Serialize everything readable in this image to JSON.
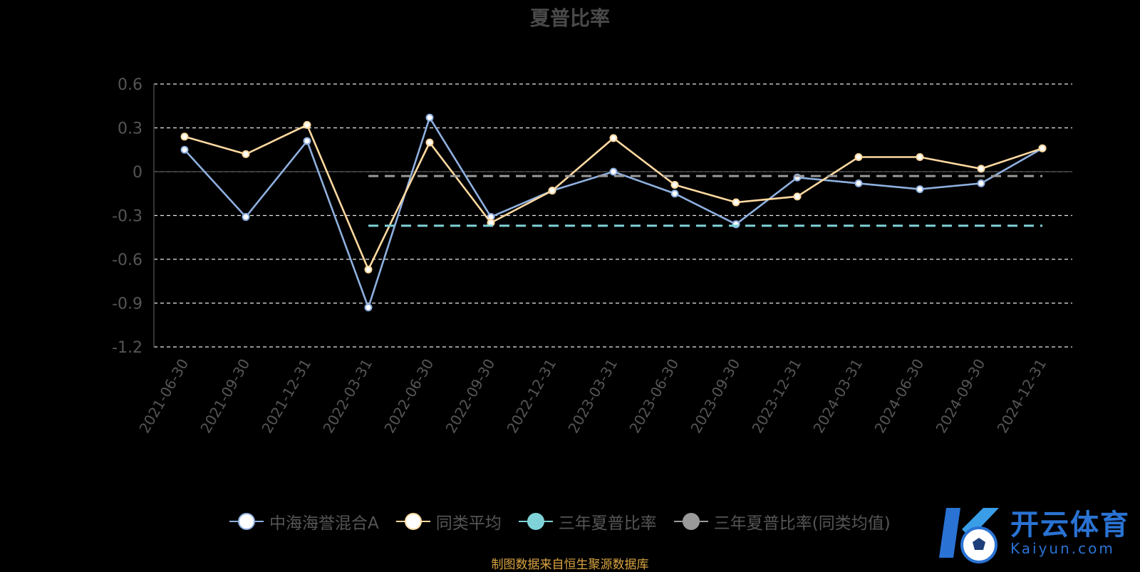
{
  "chart_data": {
    "type": "line",
    "title": "夏普比率",
    "categories": [
      "2021-06-30",
      "2021-09-30",
      "2021-12-31",
      "2022-03-31",
      "2022-06-30",
      "2022-09-30",
      "2022-12-31",
      "2023-03-31",
      "2023-06-30",
      "2023-09-30",
      "2023-12-31",
      "2024-03-31",
      "2024-06-30",
      "2024-09-30",
      "2024-12-31"
    ],
    "y_ticks": [
      "0.6",
      "0.3",
      "0",
      "-0.3",
      "-0.6",
      "-0.9",
      "-1.2"
    ],
    "ylim": [
      -1.2,
      0.6
    ],
    "grid": true,
    "legend_position": "bottom",
    "series": [
      {
        "name": "中海海誉混合A",
        "color": "#8fb0e0",
        "values": [
          0.15,
          -0.31,
          0.21,
          -0.93,
          0.37,
          -0.31,
          -0.13,
          0.0,
          -0.15,
          -0.36,
          -0.04,
          -0.08,
          -0.12,
          -0.08,
          0.16
        ]
      },
      {
        "name": "同类平均",
        "color": "#ffd9a0",
        "values": [
          0.24,
          0.12,
          0.32,
          -0.67,
          0.2,
          -0.35,
          -0.13,
          0.23,
          -0.09,
          -0.21,
          -0.17,
          0.1,
          0.1,
          0.02,
          0.16
        ]
      },
      {
        "name": "三年夏普比率",
        "color": "#7fd3d8",
        "dashed": true,
        "from_index": 3,
        "to_index": 14,
        "value": -0.37
      },
      {
        "name": "三年夏普比率(同类均值)",
        "color": "#9a9a9a",
        "dashed": true,
        "from_index": 3,
        "to_index": 14,
        "value": -0.03
      }
    ]
  },
  "legend": {
    "items": [
      {
        "label": "中海海誉混合A",
        "color": "#8fb0e0",
        "fill": "#ffffff"
      },
      {
        "label": "同类平均",
        "color": "#ffd9a0",
        "fill": "#ffffff"
      },
      {
        "label": "三年夏普比率",
        "color": "#7fd3d8",
        "fill": "#7fd3d8"
      },
      {
        "label": "三年夏普比率(同类均值)",
        "color": "#9a9a9a",
        "fill": "#9a9a9a"
      }
    ]
  },
  "source": "制图数据来自恒生聚源数据库",
  "logo": {
    "main": "开云体育",
    "sub": "Kaiyun.com"
  }
}
